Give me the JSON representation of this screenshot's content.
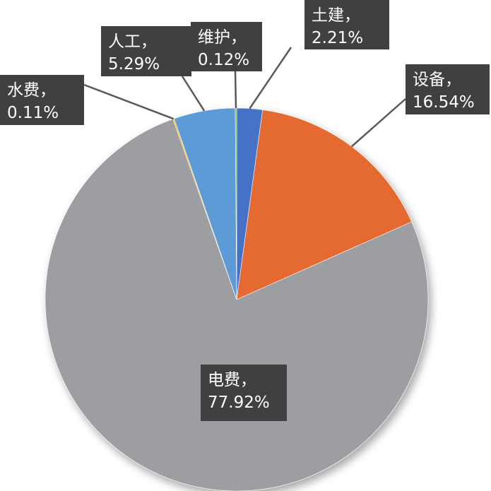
{
  "chart_data": {
    "type": "pie",
    "title": "",
    "series": [
      {
        "values": [
          {
            "label": "土建",
            "value": 2.21,
            "text": "2.21%",
            "color": "#4472c4"
          },
          {
            "label": "设备",
            "value": 16.54,
            "text": "16.54%",
            "color": "#e46a32"
          },
          {
            "label": "电费",
            "value": 77.92,
            "text": "77.92%",
            "color": "#9d9ea1"
          },
          {
            "label": "水费",
            "value": 0.11,
            "text": "0.11%",
            "color": "#f0b400"
          },
          {
            "label": "人工",
            "value": 5.29,
            "text": "5.29%",
            "color": "#5b9bd5"
          },
          {
            "label": "维护",
            "value": 0.12,
            "text": "0.12%",
            "color": "#70ad47"
          }
        ]
      }
    ],
    "label_separator": "，",
    "start_angle_deg": 0,
    "direction": "clockwise",
    "legend": "none"
  }
}
